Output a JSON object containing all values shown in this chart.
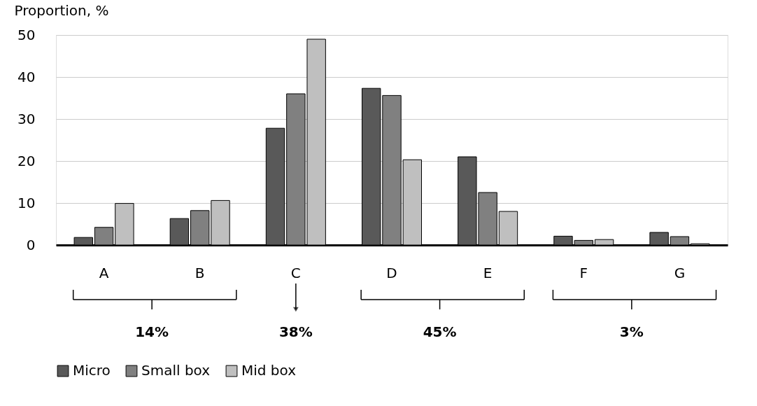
{
  "chart_data": {
    "type": "bar",
    "ylabel": "Proportion, %",
    "categories": [
      "A",
      "B",
      "C",
      "D",
      "E",
      "F",
      "G"
    ],
    "series": [
      {
        "name": "Micro",
        "color": "#595959",
        "values": [
          1.8,
          6.3,
          27.8,
          37.3,
          21.0,
          2.1,
          3.0
        ]
      },
      {
        "name": "Small box",
        "color": "#808080",
        "values": [
          4.2,
          8.2,
          36.0,
          35.6,
          12.5,
          1.1,
          2.0
        ]
      },
      {
        "name": "Mid box",
        "color": "#bfbfbf",
        "values": [
          9.9,
          10.6,
          49.0,
          20.3,
          8.0,
          1.3,
          0.3
        ]
      }
    ],
    "ylim": [
      0,
      50
    ],
    "yticks": [
      0,
      10,
      20,
      30,
      40,
      50
    ],
    "grid": "y",
    "legend": "bottom",
    "annotations": [
      "14%",
      "38%",
      "45%",
      "3%"
    ]
  }
}
